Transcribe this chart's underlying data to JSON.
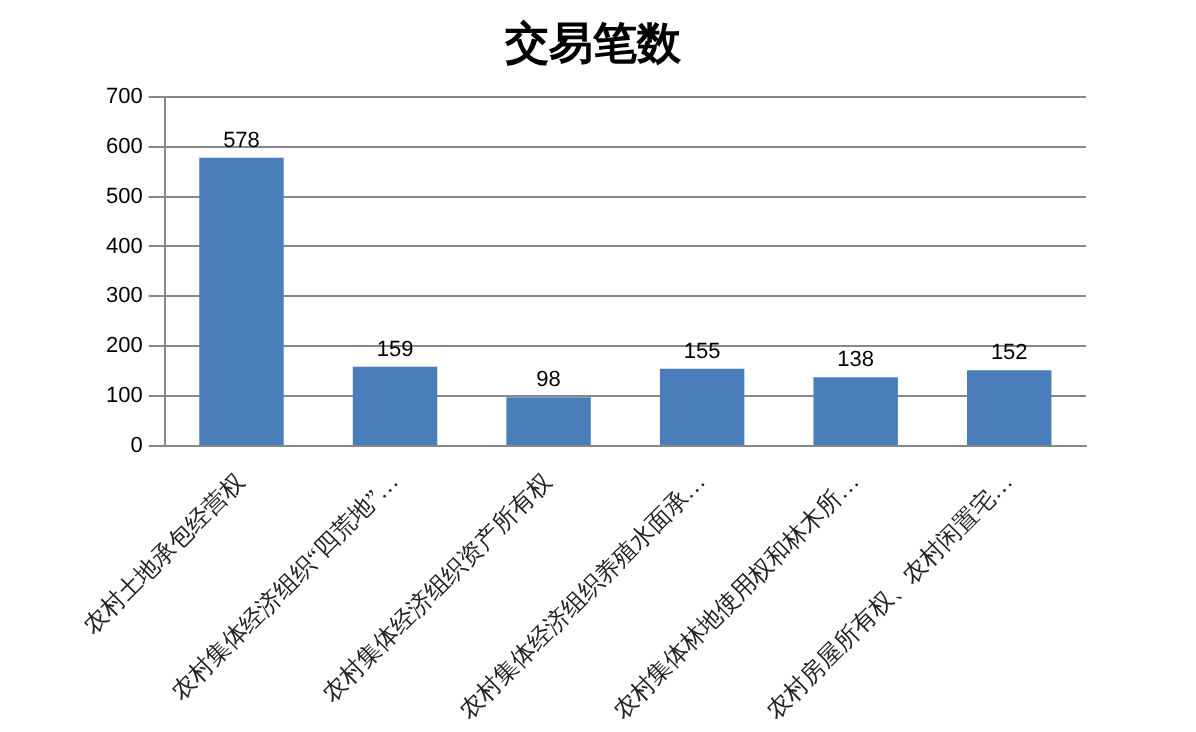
{
  "chart_data": {
    "type": "bar",
    "title": "交易笔数",
    "categories": [
      "农村土地承包经营权",
      "农村集体经济组织“四荒地”…",
      "农村集体经济组织资产所有权",
      "农村集体经济组织养殖水面承…",
      "农村集体林地使用权和林木所…",
      "农村房屋所有权、农村闲置宅…"
    ],
    "values": [
      578,
      159,
      98,
      155,
      138,
      152
    ],
    "color": "#4a7ebb",
    "ylim": [
      0,
      700
    ],
    "yticks": [
      0,
      100,
      200,
      300,
      400,
      500,
      600,
      700
    ],
    "grid": "y",
    "data_labels": true,
    "legend": false
  }
}
